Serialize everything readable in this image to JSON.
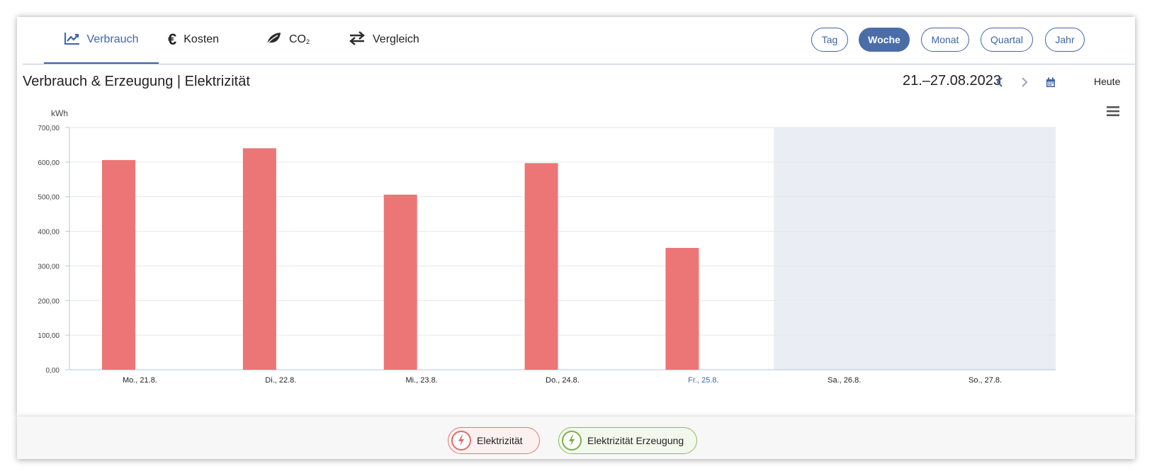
{
  "tabs": [
    {
      "label": "Verbrauch",
      "icon": "trend-chart-icon",
      "active": true
    },
    {
      "label": "Kosten",
      "icon": "euro-icon",
      "active": false
    },
    {
      "label": "CO",
      "sub": "2",
      "icon": "leaf-icon",
      "active": false
    },
    {
      "label": "Vergleich",
      "icon": "compare-arrows-icon",
      "active": false
    }
  ],
  "periods": [
    {
      "label": "Tag",
      "active": false
    },
    {
      "label": "Woche",
      "active": true
    },
    {
      "label": "Monat",
      "active": false
    },
    {
      "label": "Quartal",
      "active": false
    },
    {
      "label": "Jahr",
      "active": false
    }
  ],
  "header": {
    "title": "Verbrauch & Erzeugung | Elektrizität",
    "date_range": "21.–27.08.2023",
    "today_label": "Heute"
  },
  "colors": {
    "accent": "#3f65a8",
    "bar": "#ec7675",
    "future_band": "#eaedf3",
    "electricity": "#e06c6e",
    "production": "#7fb04a"
  },
  "chart_data": {
    "type": "bar",
    "ylabel": "kWh",
    "ylim": [
      0,
      700
    ],
    "yticks": [
      "0,00",
      "100,00",
      "200,00",
      "300,00",
      "400,00",
      "500,00",
      "600,00",
      "700,00"
    ],
    "categories": [
      "Mo., 21.8.",
      "Di., 22.8.",
      "Mi., 23.8.",
      "Do., 24.8.",
      "Fr., 25.8.",
      "Sa., 26.8.",
      "So., 27.8."
    ],
    "highlight_category": "Fr., 25.8.",
    "future_from_category": "Sa., 26.8.",
    "series": [
      {
        "name": "Elektrizität",
        "values": [
          606,
          640,
          506,
          597,
          352,
          null,
          null
        ]
      },
      {
        "name": "Elektrizität Erzeugung",
        "values": [
          0,
          0,
          0,
          0,
          0,
          null,
          null
        ]
      }
    ],
    "grid": true
  },
  "legend": [
    {
      "label": "Elektrizität",
      "icon": "lightning-icon"
    },
    {
      "label": "Elektrizität Erzeugung",
      "icon": "lightning-icon"
    }
  ]
}
